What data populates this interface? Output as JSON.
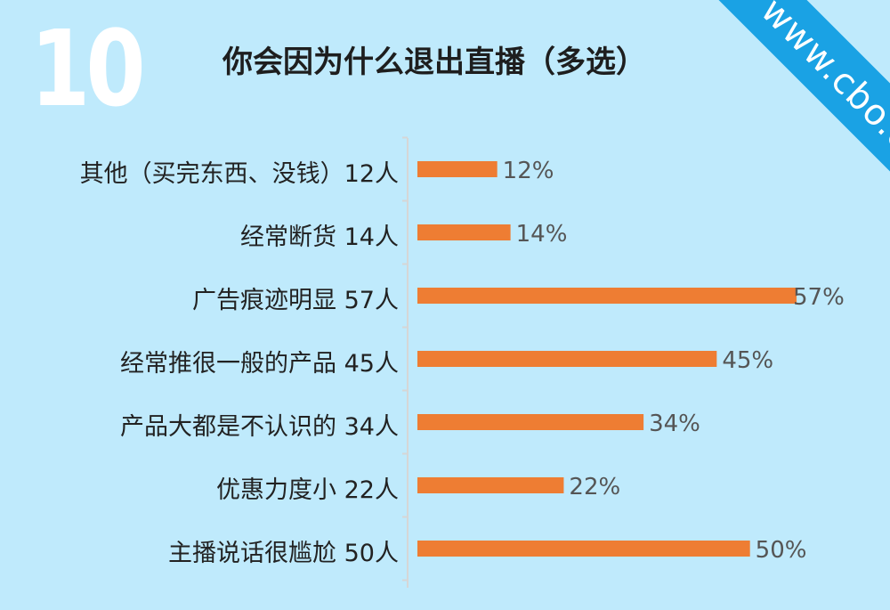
{
  "page_number": "10",
  "watermark": "www.cbo.cn",
  "colors": {
    "background": "#bfeafc",
    "bar": "#ee7d33",
    "ribbon": "#1aa2e4"
  },
  "chart_data": {
    "type": "bar",
    "orientation": "horizontal",
    "title": "你会因为什么退出直播（多选）",
    "categories": [
      "其他（买完东西、没钱）12人",
      "经常断货 14人",
      "广告痕迹明显 57人",
      "经常推很一般的产品 45人",
      "产品大都是不认识的 34人",
      "优惠力度小 22人",
      "主播说话很尴尬 50人"
    ],
    "values": [
      12,
      14,
      57,
      45,
      34,
      22,
      50
    ],
    "value_labels": [
      "12%",
      "14%",
      "57%",
      "45%",
      "34%",
      "22%",
      "50%"
    ],
    "unit": "%",
    "xlim": [
      0,
      57
    ],
    "grid": false,
    "legend": "none"
  }
}
